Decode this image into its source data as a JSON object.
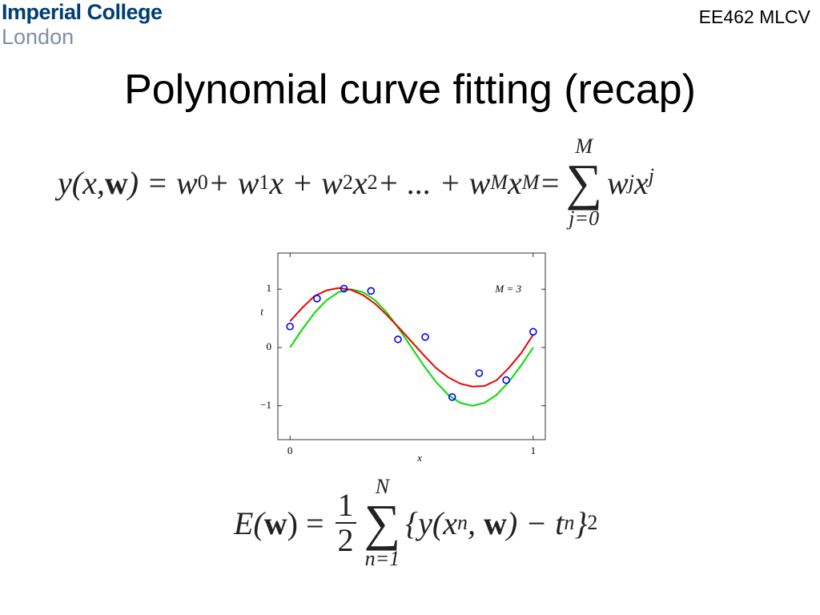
{
  "header": {
    "logo_line1": "Imperial College",
    "logo_line2": "London",
    "course": "EE462 MLCV"
  },
  "title": "Polynomial curve fitting (recap)",
  "equation1": [
    "y(x, ",
    "w",
    ") = w",
    "0",
    " + w",
    "1",
    "x + w",
    "2",
    "x",
    "2",
    " + ... + w",
    "M",
    "x",
    "M",
    " = ",
    "∑",
    "M",
    "j=0",
    "w",
    "j",
    "x",
    "j"
  ],
  "equation2": [
    "E(",
    "w",
    ") = ",
    "1",
    "2",
    "N",
    "∑",
    "n=1",
    "{y(x",
    "n",
    ", ",
    "w",
    ") − t",
    "n",
    "}",
    "2"
  ],
  "chart_data": {
    "type": "scatter-line",
    "xlabel": "x",
    "ylabel": "t",
    "annotation": "M = 3",
    "xlim": [
      -0.05,
      1.05
    ],
    "ylim": [
      -1.58,
      1.62
    ],
    "xticks": [
      0,
      1
    ],
    "yticks": [
      {
        "value": -1,
        "label": "−1"
      },
      0,
      1
    ],
    "points": {
      "color": "#0000ff",
      "x": [
        0,
        0.111,
        0.222,
        0.333,
        0.444,
        0.556,
        0.667,
        0.778,
        0.889,
        1.0
      ],
      "values": [
        0.36,
        0.84,
        1.01,
        0.97,
        0.14,
        0.18,
        -0.85,
        -0.44,
        -0.56,
        0.27
      ]
    },
    "lines": [
      {
        "color": "#00dd00",
        "x": [
          0,
          0.05,
          0.1,
          0.15,
          0.2,
          0.25,
          0.3,
          0.35,
          0.4,
          0.45,
          0.5,
          0.55,
          0.6,
          0.65,
          0.7,
          0.75,
          0.8,
          0.85,
          0.9,
          0.95,
          1.0
        ],
        "values": [
          0,
          0.31,
          0.59,
          0.81,
          0.95,
          1,
          0.95,
          0.81,
          0.59,
          0.31,
          0,
          -0.31,
          -0.59,
          -0.81,
          -0.95,
          -1,
          -0.95,
          -0.81,
          -0.59,
          -0.31,
          0
        ]
      },
      {
        "color": "#ee0000",
        "x": [
          0,
          0.05,
          0.1,
          0.15,
          0.2,
          0.25,
          0.3,
          0.35,
          0.4,
          0.45,
          0.5,
          0.55,
          0.6,
          0.65,
          0.7,
          0.75,
          0.8,
          0.85,
          0.9,
          0.95,
          1.0
        ],
        "values": [
          0.45,
          0.68,
          0.88,
          0.98,
          1.02,
          0.99,
          0.9,
          0.75,
          0.55,
          0.33,
          0.1,
          -0.13,
          -0.35,
          -0.51,
          -0.62,
          -0.67,
          -0.66,
          -0.56,
          -0.35,
          -0.1,
          0.22
        ]
      }
    ]
  }
}
